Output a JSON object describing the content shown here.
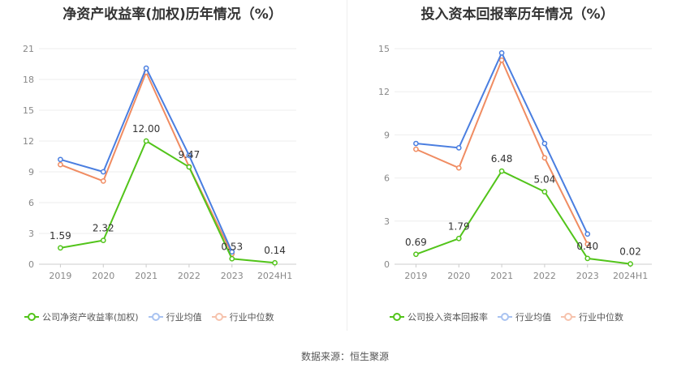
{
  "chart_data": [
    {
      "type": "line",
      "title": "净资产收益率(加权)历年情况（%）",
      "categories": [
        "2019",
        "2020",
        "2021",
        "2022",
        "2023",
        "2024H1"
      ],
      "ylim": [
        0,
        21
      ],
      "yticks": [
        "0",
        "3",
        "6",
        "9",
        "12",
        "15",
        "18",
        "21"
      ],
      "grid": true,
      "legend_position": "bottom",
      "series": [
        {
          "name": "公司净资产收益率(加权)",
          "color": "#52c41a",
          "values": [
            1.59,
            2.32,
            12.0,
            9.47,
            0.53,
            0.14
          ],
          "labels": [
            "1.59",
            "2.32",
            "12.00",
            "9.47",
            "0.53",
            "0.14"
          ]
        },
        {
          "name": "行业均值",
          "color": "#4a7ee0",
          "values": [
            10.2,
            9.0,
            19.1,
            10.6,
            1.2,
            null
          ]
        },
        {
          "name": "行业中位数",
          "color": "#f08c62",
          "values": [
            9.7,
            8.1,
            18.7,
            9.5,
            1.0,
            null
          ]
        }
      ]
    },
    {
      "type": "line",
      "title": "投入资本回报率历年情况（%）",
      "categories": [
        "2019",
        "2020",
        "2021",
        "2022",
        "2023",
        "2024H1"
      ],
      "ylim": [
        0,
        15
      ],
      "yticks": [
        "0",
        "3",
        "6",
        "9",
        "12",
        "15"
      ],
      "grid": true,
      "legend_position": "bottom",
      "series": [
        {
          "name": "公司投入资本回报率",
          "color": "#52c41a",
          "values": [
            0.69,
            1.79,
            6.48,
            5.04,
            0.4,
            0.02
          ],
          "labels": [
            "0.69",
            "1.79",
            "6.48",
            "5.04",
            "0.40",
            "0.02"
          ]
        },
        {
          "name": "行业均值",
          "color": "#4a7ee0",
          "values": [
            8.4,
            8.1,
            14.7,
            8.4,
            2.1,
            null
          ]
        },
        {
          "name": "行业中位数",
          "color": "#f08c62",
          "values": [
            8.0,
            6.7,
            14.2,
            7.4,
            1.4,
            null
          ]
        }
      ]
    }
  ],
  "source_text": "数据来源：恒生聚源"
}
